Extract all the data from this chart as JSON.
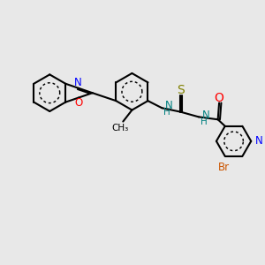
{
  "bg_color": "#e8e8e8",
  "bond_color": "#000000",
  "bond_width": 1.5,
  "font_size": 8.5,
  "fig_size": [
    3.0,
    3.0
  ],
  "dpi": 100,
  "xlim": [
    0,
    10
  ],
  "ylim": [
    0,
    10
  ]
}
